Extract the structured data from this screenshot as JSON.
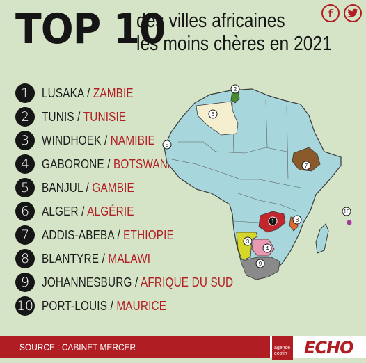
{
  "header": {
    "title": "TOP 10",
    "subtitle_line1": "des villes africaines",
    "subtitle_line2": "les moins chères en 2021"
  },
  "social": {
    "facebook_glyph": "f",
    "twitter_glyph": "🐦"
  },
  "ranking": [
    {
      "rank": "1",
      "city": "LUSAKA",
      "country": "ZAMBIE"
    },
    {
      "rank": "2",
      "city": "TUNIS",
      "country": "TUNISIE"
    },
    {
      "rank": "3",
      "city": "WINDHOEK",
      "country": "NAMIBIE"
    },
    {
      "rank": "4",
      "city": "GABORONE",
      "country": "BOTSWANA"
    },
    {
      "rank": "5",
      "city": "BANJUL",
      "country": "GAMBIE"
    },
    {
      "rank": "6",
      "city": "ALGER",
      "country": "ALGÉRIE"
    },
    {
      "rank": "7",
      "city": "ADDIS-ABEBA",
      "country": "ETHIOPIE"
    },
    {
      "rank": "8",
      "city": "BLANTYRE",
      "country": "MALAWI"
    },
    {
      "rank": "9",
      "city": "JOHANNESBURG",
      "country": "AFRIQUE DU SUD"
    },
    {
      "rank": "10",
      "city": "PORT-LOUIS",
      "country": "MAURICE"
    }
  ],
  "separator": "/",
  "map_markers": [
    "1",
    "2",
    "3",
    "4",
    "5",
    "6",
    "7",
    "8",
    "9",
    "10"
  ],
  "footer": {
    "source": "SOURCE : CABINET MERCER",
    "agency_line1": "agence",
    "agency_line2": "ecofin",
    "brand": "ECHO"
  },
  "colors": {
    "background": "#d5e4c6",
    "accent": "#b01e23",
    "map_base": "#a7d7dc",
    "zambia": "#c1272d",
    "tunisia": "#4b8b2f",
    "namibia": "#d6d62a",
    "botswana": "#e99ab2",
    "algeria": "#f5efcf",
    "ethiopia": "#8b5a2b",
    "malawi": "#e06a2b",
    "south_africa": "#8a8a8a",
    "mauritius": "#a63a9a"
  }
}
